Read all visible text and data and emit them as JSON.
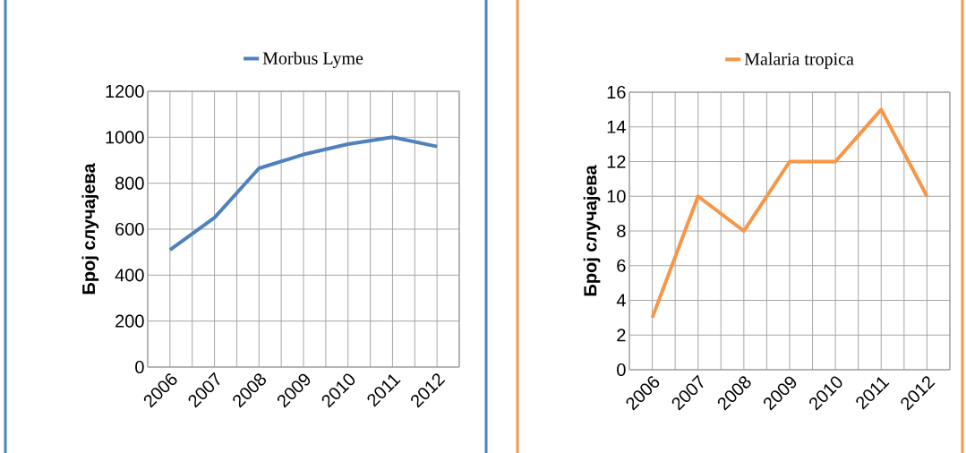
{
  "chart_data": [
    {
      "type": "line",
      "categories": [
        "2006",
        "2007",
        "2008",
        "2009",
        "2010",
        "2011",
        "2012"
      ],
      "series": [
        {
          "name": "Morbus Lyme",
          "color": "#4f81bd",
          "values": [
            510,
            650,
            865,
            925,
            970,
            1000,
            960
          ]
        }
      ],
      "ylabel": "Број случајева",
      "ylim": [
        0,
        1200
      ],
      "yticks": [
        0,
        200,
        400,
        600,
        800,
        1000,
        1200
      ],
      "grid": true,
      "legend": "top"
    },
    {
      "type": "line",
      "categories": [
        "2006",
        "2007",
        "2008",
        "2009",
        "2010",
        "2011",
        "2012"
      ],
      "series": [
        {
          "name": "Malaria tropica",
          "color": "#f79646",
          "values": [
            3,
            10,
            8,
            12,
            12,
            15,
            10
          ]
        }
      ],
      "ylabel": "Број случајева",
      "ylim": [
        0,
        16
      ],
      "yticks": [
        0,
        2,
        4,
        6,
        8,
        10,
        12,
        14,
        16
      ],
      "grid": true,
      "legend": "top"
    }
  ]
}
